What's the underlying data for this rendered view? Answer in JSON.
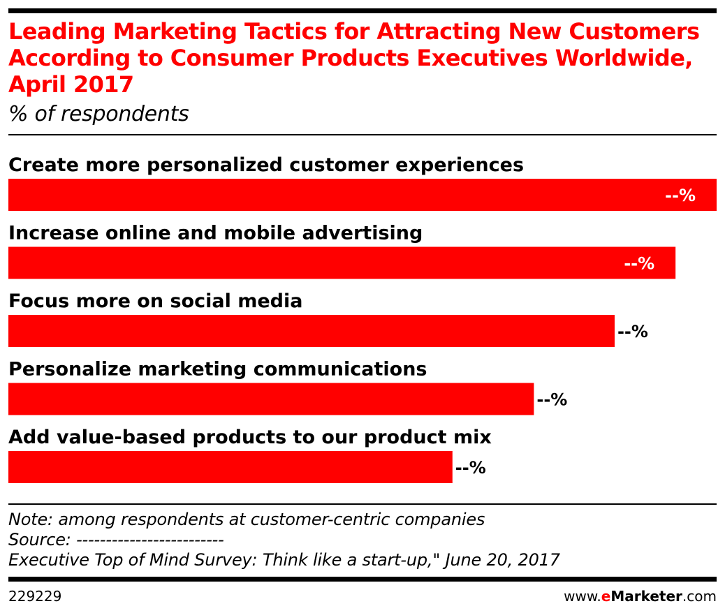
{
  "chart_data": {
    "type": "bar",
    "orientation": "horizontal",
    "title": "Leading Marketing Tactics for Attracting New Customers According to Consumer Products Executives Worldwide, April 2017",
    "subtitle": "% of respondents",
    "categories": [
      "Create more personalized customer experiences",
      "Increase online and mobile advertising",
      "Focus more on social media",
      "Personalize marketing communications",
      "Add value-based products to our product mix"
    ],
    "values": [
      100,
      94.2,
      85.6,
      74.2,
      62.7
    ],
    "value_labels": [
      "--%",
      "--%",
      "--%",
      "--%",
      "--%"
    ],
    "xlim": [
      0,
      100
    ],
    "grid": false,
    "legend": "none",
    "colors": {
      "bar": "#ff0000",
      "title": "#ff0000",
      "label_inside": "#ffffff",
      "label_outside": "#000000"
    }
  },
  "footer": {
    "note": "Note: among respondents at customer-centric companies",
    "source": "Source: -------------------------",
    "source_detail": "Executive Top of Mind Survey: Think like a start-up,\" June 20, 2017",
    "chart_id": "229229",
    "brand_prefix": "www.",
    "brand_e": "e",
    "brand_name": "Marketer",
    "brand_suffix": ".com"
  }
}
